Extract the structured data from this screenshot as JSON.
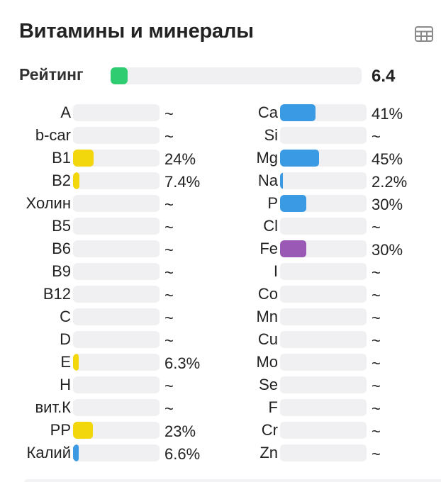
{
  "title": "Витамины и минералы",
  "table_icon": "table-grid-icon",
  "colors": {
    "yellow": "#f2d70c",
    "blue": "#3a9ae3",
    "purple": "#9b59b6",
    "green": "#2fcc71",
    "track": "#f0f0f2"
  },
  "rating": {
    "label": "Рейтинг",
    "value": "6.4",
    "fill_percent": 6.4,
    "color": "#2fcc71"
  },
  "vitamins": [
    {
      "name": "A",
      "value": "~",
      "percent": 0,
      "color": "#f2d70c"
    },
    {
      "name": "b-car",
      "value": "~",
      "percent": 0,
      "color": "#f2d70c"
    },
    {
      "name": "B1",
      "value": "24%",
      "percent": 24,
      "color": "#f2d70c"
    },
    {
      "name": "B2",
      "value": "7.4%",
      "percent": 7.4,
      "color": "#f2d70c"
    },
    {
      "name": "Холин",
      "value": "~",
      "percent": 0,
      "color": "#f2d70c"
    },
    {
      "name": "B5",
      "value": "~",
      "percent": 0,
      "color": "#f2d70c"
    },
    {
      "name": "B6",
      "value": "~",
      "percent": 0,
      "color": "#f2d70c"
    },
    {
      "name": "B9",
      "value": "~",
      "percent": 0,
      "color": "#f2d70c"
    },
    {
      "name": "B12",
      "value": "~",
      "percent": 0,
      "color": "#f2d70c"
    },
    {
      "name": "C",
      "value": "~",
      "percent": 0,
      "color": "#f2d70c"
    },
    {
      "name": "D",
      "value": "~",
      "percent": 0,
      "color": "#f2d70c"
    },
    {
      "name": "E",
      "value": "6.3%",
      "percent": 6.3,
      "color": "#f2d70c"
    },
    {
      "name": "H",
      "value": "~",
      "percent": 0,
      "color": "#f2d70c"
    },
    {
      "name": "вит.К",
      "value": "~",
      "percent": 0,
      "color": "#f2d70c"
    },
    {
      "name": "PP",
      "value": "23%",
      "percent": 23,
      "color": "#f2d70c"
    },
    {
      "name": "Калий",
      "value": "6.6%",
      "percent": 6.6,
      "color": "#3a9ae3"
    }
  ],
  "minerals": [
    {
      "name": "Ca",
      "value": "41%",
      "percent": 41,
      "color": "#3a9ae3"
    },
    {
      "name": "Si",
      "value": "~",
      "percent": 0,
      "color": "#3a9ae3"
    },
    {
      "name": "Mg",
      "value": "45%",
      "percent": 45,
      "color": "#3a9ae3"
    },
    {
      "name": "Na",
      "value": "2.2%",
      "percent": 2.2,
      "color": "#3a9ae3"
    },
    {
      "name": "P",
      "value": "30%",
      "percent": 30,
      "color": "#3a9ae3"
    },
    {
      "name": "Cl",
      "value": "~",
      "percent": 0,
      "color": "#3a9ae3"
    },
    {
      "name": "Fe",
      "value": "30%",
      "percent": 30,
      "color": "#9b59b6"
    },
    {
      "name": "I",
      "value": "~",
      "percent": 0,
      "color": "#9b59b6"
    },
    {
      "name": "Co",
      "value": "~",
      "percent": 0,
      "color": "#9b59b6"
    },
    {
      "name": "Mn",
      "value": "~",
      "percent": 0,
      "color": "#9b59b6"
    },
    {
      "name": "Cu",
      "value": "~",
      "percent": 0,
      "color": "#9b59b6"
    },
    {
      "name": "Mo",
      "value": "~",
      "percent": 0,
      "color": "#9b59b6"
    },
    {
      "name": "Se",
      "value": "~",
      "percent": 0,
      "color": "#9b59b6"
    },
    {
      "name": "F",
      "value": "~",
      "percent": 0,
      "color": "#9b59b6"
    },
    {
      "name": "Cr",
      "value": "~",
      "percent": 0,
      "color": "#9b59b6"
    },
    {
      "name": "Zn",
      "value": "~",
      "percent": 0,
      "color": "#9b59b6"
    }
  ]
}
